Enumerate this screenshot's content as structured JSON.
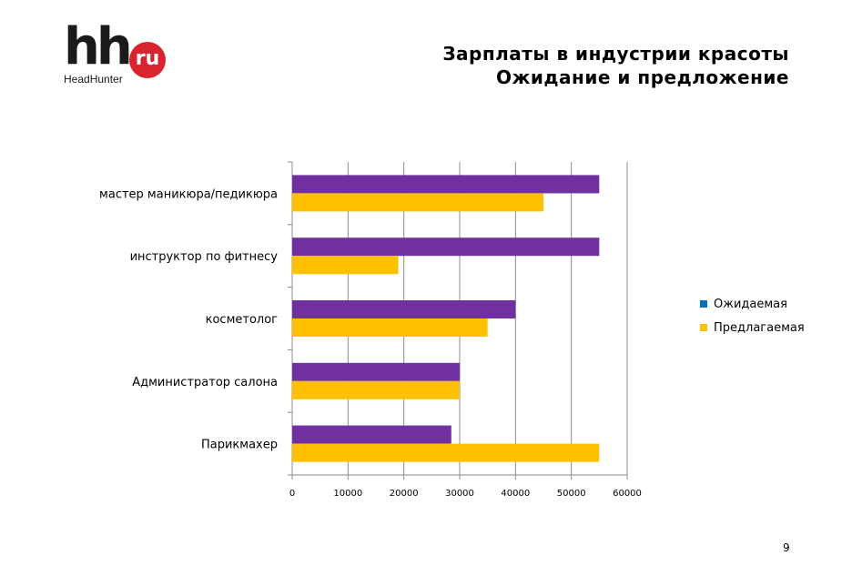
{
  "logo": {
    "mark": "hh",
    "badge": "ru",
    "sub": "HeadHunter"
  },
  "title": {
    "line1": "Зарплаты в индустрии красоты",
    "line2": "Ожидание и предложение"
  },
  "page_number": "9",
  "colors": {
    "expected": "#7030a0",
    "offered": "#ffc000",
    "legend_expected": "#0070c0",
    "legend_offered": "#ffc000",
    "grid": "#8c8c8c",
    "brand": "#d9232e"
  },
  "chart_data": {
    "type": "bar",
    "orientation": "horizontal",
    "categories": [
      "мастер маникюра/педикюра",
      "инструктор по фитнесу",
      "косметолог",
      "Администратор салона",
      "Парикмахер"
    ],
    "series": [
      {
        "name": "Ожидаемая",
        "values": [
          55000,
          55000,
          40000,
          30000,
          28500
        ]
      },
      {
        "name": "Предлагаемая",
        "values": [
          45000,
          19000,
          35000,
          30000,
          55000
        ]
      }
    ],
    "xlim": [
      0,
      60000
    ],
    "xticks": [
      "0",
      "10000",
      "20000",
      "30000",
      "40000",
      "50000",
      "60000"
    ],
    "grid": true,
    "legend": "right"
  }
}
